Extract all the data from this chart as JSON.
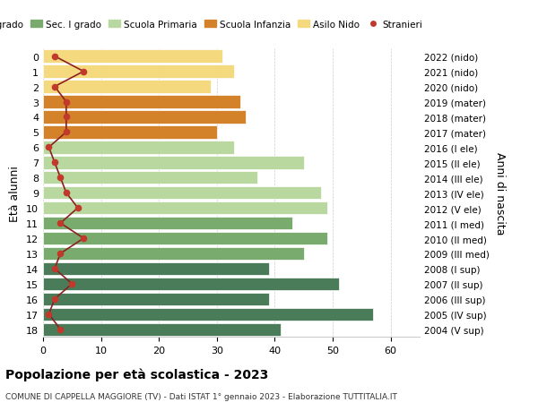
{
  "ages": [
    18,
    17,
    16,
    15,
    14,
    13,
    12,
    11,
    10,
    9,
    8,
    7,
    6,
    5,
    4,
    3,
    2,
    1,
    0
  ],
  "anni_nascita": [
    "2004 (V sup)",
    "2005 (IV sup)",
    "2006 (III sup)",
    "2007 (II sup)",
    "2008 (I sup)",
    "2009 (III med)",
    "2010 (II med)",
    "2011 (I med)",
    "2012 (V ele)",
    "2013 (IV ele)",
    "2014 (III ele)",
    "2015 (II ele)",
    "2016 (I ele)",
    "2017 (mater)",
    "2018 (mater)",
    "2019 (mater)",
    "2020 (nido)",
    "2021 (nido)",
    "2022 (nido)"
  ],
  "bar_values": [
    41,
    57,
    39,
    51,
    39,
    45,
    49,
    43,
    49,
    48,
    37,
    45,
    33,
    30,
    35,
    34,
    29,
    33,
    31
  ],
  "bar_colors": [
    "#4a7c59",
    "#4a7c59",
    "#4a7c59",
    "#4a7c59",
    "#4a7c59",
    "#7aab6e",
    "#7aab6e",
    "#7aab6e",
    "#b8d8a0",
    "#b8d8a0",
    "#b8d8a0",
    "#b8d8a0",
    "#b8d8a0",
    "#d4822a",
    "#d4822a",
    "#d4822a",
    "#f5d97e",
    "#f5d97e",
    "#f5d97e"
  ],
  "stranieri_values": [
    3,
    1,
    2,
    5,
    2,
    3,
    7,
    3,
    6,
    4,
    3,
    2,
    1,
    4,
    4,
    4,
    2,
    7,
    2
  ],
  "legend_labels": [
    "Sec. II grado",
    "Sec. I grado",
    "Scuola Primaria",
    "Scuola Infanzia",
    "Asilo Nido",
    "Stranieri"
  ],
  "legend_colors": [
    "#4a7c59",
    "#7aab6e",
    "#b8d8a0",
    "#d4822a",
    "#f5d97e",
    "#c0392b"
  ],
  "title": "Popolazione per età scolastica - 2023",
  "subtitle": "COMUNE DI CAPPELLA MAGGIORE (TV) - Dati ISTAT 1° gennaio 2023 - Elaborazione TUTTITALIA.IT",
  "ylabel_left": "Età alunni",
  "ylabel_right": "Anni di nascita",
  "xlim": [
    0,
    65
  ],
  "xticks": [
    0,
    10,
    20,
    30,
    40,
    50,
    60
  ],
  "background_color": "#ffffff",
  "grid_color": "#cccccc",
  "stranieri_color": "#c0392b",
  "stranieri_line_color": "#8b2020"
}
